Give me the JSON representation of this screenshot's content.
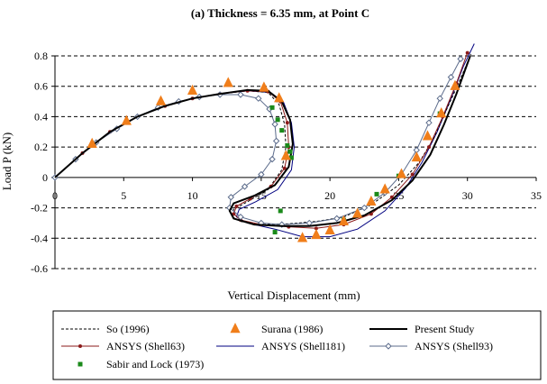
{
  "chart_data": {
    "type": "line",
    "title": "(a) Thickness = 6.35 mm, at Point C",
    "xlabel": "Vertical Displacement (mm)",
    "ylabel": "Load P (kN)",
    "xlim": [
      0,
      35
    ],
    "ylim": [
      -0.6,
      0.8
    ],
    "xticks": [
      0,
      5,
      10,
      15,
      20,
      25,
      30,
      35
    ],
    "yticks": [
      -0.6,
      -0.4,
      -0.2,
      0,
      0.2,
      0.4,
      0.6,
      0.8
    ],
    "ytick_labels": [
      "-0.6",
      "-0.4",
      "-0.2",
      "0",
      "0.2",
      "0.4",
      "0.6",
      "0.8"
    ],
    "grid": "horizontal dashed",
    "legend_position": "bottom",
    "series": [
      {
        "name": "So (1996)",
        "style": "dashed",
        "color": "#000000",
        "marker": "none",
        "points": [
          [
            0,
            0
          ],
          [
            2,
            0.16
          ],
          [
            4,
            0.3
          ],
          [
            6,
            0.4
          ],
          [
            8,
            0.47
          ],
          [
            10,
            0.52
          ],
          [
            12,
            0.55
          ],
          [
            14,
            0.57
          ],
          [
            15.5,
            0.56
          ],
          [
            16.3,
            0.48
          ],
          [
            16.7,
            0.35
          ],
          [
            16.8,
            0.2
          ],
          [
            16.5,
            0.05
          ],
          [
            15.5,
            -0.08
          ],
          [
            14,
            -0.16
          ],
          [
            13,
            -0.21
          ],
          [
            12.9,
            -0.26
          ],
          [
            13.5,
            -0.29
          ],
          [
            15,
            -0.31
          ],
          [
            17,
            -0.305
          ],
          [
            19,
            -0.29
          ],
          [
            21,
            -0.26
          ],
          [
            23,
            -0.18
          ],
          [
            25,
            -0.05
          ],
          [
            26.5,
            0.1
          ],
          [
            27.5,
            0.25
          ],
          [
            28.5,
            0.45
          ],
          [
            29.5,
            0.65
          ],
          [
            30.3,
            0.82
          ]
        ]
      },
      {
        "name": "Surana (1986)",
        "style": "marker-only",
        "color": "#F07E1A",
        "marker": "triangle",
        "points": [
          [
            2.7,
            0.22
          ],
          [
            5.2,
            0.37
          ],
          [
            7.7,
            0.5
          ],
          [
            10,
            0.57
          ],
          [
            12.6,
            0.62
          ],
          [
            15.2,
            0.59
          ],
          [
            16.3,
            0.52
          ],
          [
            16.8,
            0.14
          ],
          [
            18,
            -0.4
          ],
          [
            19,
            -0.38
          ],
          [
            20,
            -0.35
          ],
          [
            21,
            -0.29
          ],
          [
            22,
            -0.24
          ],
          [
            23,
            -0.16
          ],
          [
            24,
            -0.08
          ],
          [
            25.2,
            0.02
          ],
          [
            26.3,
            0.13
          ],
          [
            27.1,
            0.27
          ],
          [
            28.1,
            0.42
          ],
          [
            29.1,
            0.6
          ]
        ]
      },
      {
        "name": "Present Study",
        "style": "solid-bold",
        "color": "#000000",
        "marker": "none",
        "points": [
          [
            0,
            0
          ],
          [
            2,
            0.16
          ],
          [
            4,
            0.3
          ],
          [
            6,
            0.4
          ],
          [
            8,
            0.47
          ],
          [
            10,
            0.52
          ],
          [
            12,
            0.55
          ],
          [
            14,
            0.575
          ],
          [
            15.5,
            0.57
          ],
          [
            16.5,
            0.5
          ],
          [
            17.1,
            0.38
          ],
          [
            17.3,
            0.22
          ],
          [
            17,
            0.07
          ],
          [
            16,
            -0.05
          ],
          [
            14.5,
            -0.12
          ],
          [
            13,
            -0.17
          ],
          [
            12.7,
            -0.22
          ],
          [
            13,
            -0.27
          ],
          [
            14.5,
            -0.31
          ],
          [
            16.5,
            -0.32
          ],
          [
            18.5,
            -0.32
          ],
          [
            20.5,
            -0.3
          ],
          [
            22.5,
            -0.25
          ],
          [
            24.5,
            -0.15
          ],
          [
            26,
            -0.02
          ],
          [
            27.3,
            0.15
          ],
          [
            28.3,
            0.35
          ],
          [
            29.2,
            0.55
          ],
          [
            30.2,
            0.8
          ]
        ]
      },
      {
        "name": "ANSYS (Shell63)",
        "style": "solid",
        "color": "#8B1A1A",
        "marker": "dot",
        "points": [
          [
            0,
            0
          ],
          [
            2,
            0.16
          ],
          [
            4,
            0.3
          ],
          [
            6,
            0.4
          ],
          [
            8,
            0.47
          ],
          [
            10,
            0.52
          ],
          [
            12,
            0.55
          ],
          [
            14,
            0.57
          ],
          [
            15.5,
            0.565
          ],
          [
            16.4,
            0.5
          ],
          [
            16.9,
            0.36
          ],
          [
            17,
            0.2
          ],
          [
            16.7,
            0.06
          ],
          [
            15.7,
            -0.06
          ],
          [
            14.2,
            -0.14
          ],
          [
            13.2,
            -0.19
          ],
          [
            13,
            -0.24
          ],
          [
            13.5,
            -0.28
          ],
          [
            15,
            -0.31
          ],
          [
            17,
            -0.325
          ],
          [
            19,
            -0.335
          ],
          [
            21,
            -0.31
          ],
          [
            23,
            -0.24
          ],
          [
            24.5,
            -0.13
          ],
          [
            26,
            0.02
          ],
          [
            27.2,
            0.2
          ],
          [
            28.2,
            0.4
          ],
          [
            29.2,
            0.62
          ],
          [
            30,
            0.82
          ]
        ]
      },
      {
        "name": "ANSYS (Shell181)",
        "style": "solid",
        "color": "#000080",
        "marker": "none",
        "points": [
          [
            0,
            0
          ],
          [
            2,
            0.16
          ],
          [
            4,
            0.3
          ],
          [
            6,
            0.4
          ],
          [
            8,
            0.47
          ],
          [
            10,
            0.52
          ],
          [
            12,
            0.55
          ],
          [
            14,
            0.57
          ],
          [
            15.6,
            0.56
          ],
          [
            16.6,
            0.5
          ],
          [
            17.2,
            0.36
          ],
          [
            17.4,
            0.2
          ],
          [
            17.2,
            0.05
          ],
          [
            16.2,
            -0.08
          ],
          [
            14.6,
            -0.16
          ],
          [
            13.4,
            -0.21
          ],
          [
            13.2,
            -0.26
          ],
          [
            14,
            -0.3
          ],
          [
            16,
            -0.34
          ],
          [
            18,
            -0.39
          ],
          [
            20,
            -0.39
          ],
          [
            22,
            -0.34
          ],
          [
            24,
            -0.22
          ],
          [
            25.5,
            -0.07
          ],
          [
            26.7,
            0.1
          ],
          [
            27.8,
            0.3
          ],
          [
            28.8,
            0.52
          ],
          [
            29.7,
            0.73
          ],
          [
            30.5,
            0.88
          ]
        ]
      },
      {
        "name": "ANSYS (Shell93)",
        "style": "solid",
        "color": "#5B6B8B",
        "marker": "diamond",
        "points": [
          [
            0,
            0
          ],
          [
            1.5,
            0.12
          ],
          [
            3,
            0.23
          ],
          [
            4.5,
            0.32
          ],
          [
            6,
            0.4
          ],
          [
            7.5,
            0.46
          ],
          [
            9,
            0.5
          ],
          [
            10.5,
            0.53
          ],
          [
            12,
            0.545
          ],
          [
            13.5,
            0.545
          ],
          [
            14.8,
            0.52
          ],
          [
            15.6,
            0.45
          ],
          [
            16,
            0.35
          ],
          [
            16.1,
            0.24
          ],
          [
            15.8,
            0.12
          ],
          [
            15,
            0.02
          ],
          [
            13.8,
            -0.06
          ],
          [
            12.8,
            -0.13
          ],
          [
            12.7,
            -0.2
          ],
          [
            13.5,
            -0.26
          ],
          [
            15,
            -0.3
          ],
          [
            16.5,
            -0.31
          ],
          [
            18.5,
            -0.3
          ],
          [
            20.5,
            -0.27
          ],
          [
            22.5,
            -0.2
          ],
          [
            24,
            -0.1
          ],
          [
            25.2,
            0.02
          ],
          [
            26.3,
            0.18
          ],
          [
            27.2,
            0.36
          ],
          [
            28,
            0.52
          ],
          [
            28.8,
            0.66
          ],
          [
            29.5,
            0.78
          ]
        ]
      },
      {
        "name": "Sabir and Lock (1973)",
        "style": "marker-only",
        "color": "#1A8A1A",
        "marker": "square",
        "points": [
          [
            15.8,
            0.46
          ],
          [
            16.2,
            0.38
          ],
          [
            16.5,
            0.31
          ],
          [
            16.9,
            0.21
          ],
          [
            17.1,
            0.17
          ],
          [
            17.2,
            0.13
          ],
          [
            16.4,
            -0.22
          ],
          [
            16,
            -0.36
          ],
          [
            21,
            -0.28
          ],
          [
            23.4,
            -0.11
          ],
          [
            25,
            0.01
          ],
          [
            28,
            0.42
          ]
        ]
      }
    ]
  }
}
